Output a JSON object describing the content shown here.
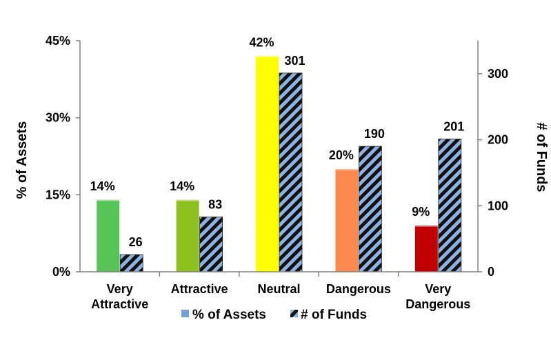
{
  "chart_data": {
    "type": "bar",
    "categories": [
      [
        "Very",
        "Attractive"
      ],
      [
        "Attractive"
      ],
      [
        "Neutral"
      ],
      [
        "Dangerous"
      ],
      [
        "Very",
        "Dangerous"
      ]
    ],
    "series": [
      {
        "name": "% of Assets",
        "axis": "left",
        "values": [
          14,
          14,
          42,
          20,
          9
        ],
        "labels": [
          "14%",
          "14%",
          "42%",
          "20%",
          "9%"
        ],
        "colors": [
          "#56c456",
          "#8cc11f",
          "#ffff00",
          "#ff8a50",
          "#c00000"
        ],
        "legend_color": "#6f9fd8"
      },
      {
        "name": "# of Funds",
        "axis": "right",
        "values": [
          26,
          83,
          301,
          190,
          201
        ],
        "labels": [
          "26",
          "83",
          "301",
          "190",
          "201"
        ],
        "pattern": "diagonal-stripes",
        "stripe_colors": [
          "#111111",
          "#8db3e2"
        ]
      }
    ],
    "y_left": {
      "label": "% of Assets",
      "range": [
        0,
        45
      ],
      "ticks": [
        "0%",
        "15%",
        "30%",
        "45%"
      ],
      "tick_values": [
        0,
        15,
        30,
        45
      ]
    },
    "y_right": {
      "label": "# of Funds",
      "range": [
        0,
        350
      ],
      "ticks": [
        "0",
        "100",
        "200",
        "300"
      ],
      "tick_values": [
        0,
        100,
        200,
        300
      ]
    },
    "grid": false,
    "legend": "bottom"
  }
}
